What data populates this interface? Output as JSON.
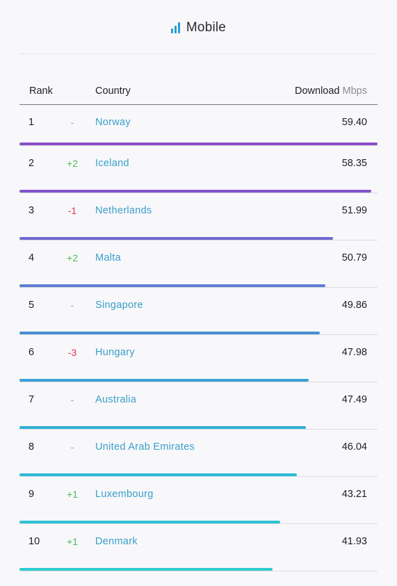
{
  "header": {
    "title": "Mobile",
    "icon": "signal-bars-icon",
    "icon_color": "#2b9bd6"
  },
  "table": {
    "col_rank": "Rank",
    "col_country": "Country",
    "col_download": "Download",
    "col_unit": "Mbps"
  },
  "max_speed": 59.4,
  "rows": [
    {
      "rank": "1",
      "change": "-",
      "change_dir": "same",
      "country": "Norway",
      "value": "59.40",
      "speed": 59.4,
      "bar_color": "#8a4fc9"
    },
    {
      "rank": "2",
      "change": "+2",
      "change_dir": "up",
      "country": "Iceland",
      "value": "58.35",
      "speed": 58.35,
      "bar_color": "#8255cd"
    },
    {
      "rank": "3",
      "change": "-1",
      "change_dir": "down",
      "country": "Netherlands",
      "value": "51.99",
      "speed": 51.99,
      "bar_color": "#6f6acf"
    },
    {
      "rank": "4",
      "change": "+2",
      "change_dir": "up",
      "country": "Malta",
      "value": "50.79",
      "speed": 50.79,
      "bar_color": "#5b7dd2"
    },
    {
      "rank": "5",
      "change": "-",
      "change_dir": "same",
      "country": "Singapore",
      "value": "49.86",
      "speed": 49.86,
      "bar_color": "#4a8fd4"
    },
    {
      "rank": "6",
      "change": "-3",
      "change_dir": "down",
      "country": "Hungary",
      "value": "47.98",
      "speed": 47.98,
      "bar_color": "#3aa1d6"
    },
    {
      "rank": "7",
      "change": "-",
      "change_dir": "same",
      "country": "Australia",
      "value": "47.49",
      "speed": 47.49,
      "bar_color": "#30aed6"
    },
    {
      "rank": "8",
      "change": "-",
      "change_dir": "same",
      "country": "United Arab Emirates",
      "value": "46.04",
      "speed": 46.04,
      "bar_color": "#2bb9d5"
    },
    {
      "rank": "9",
      "change": "+1",
      "change_dir": "up",
      "country": "Luxembourg",
      "value": "43.21",
      "speed": 43.21,
      "bar_color": "#2dc2d3"
    },
    {
      "rank": "10",
      "change": "+1",
      "change_dir": "up",
      "country": "Denmark",
      "value": "41.93",
      "speed": 41.93,
      "bar_color": "#30ccd1"
    }
  ]
}
